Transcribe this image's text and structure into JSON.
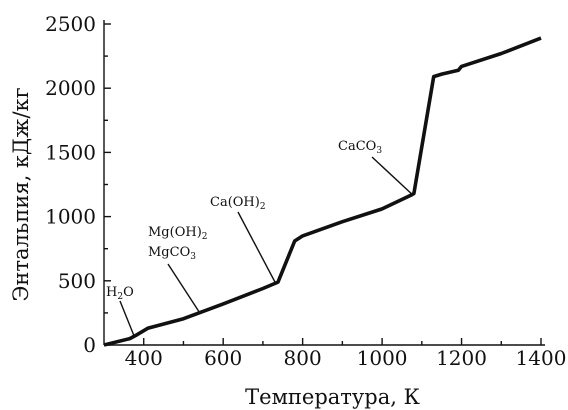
{
  "chart_data": {
    "type": "line",
    "title": "",
    "xlabel": "Температура, К",
    "ylabel": "Энтальпия, кДж/кг",
    "xlim": [
      300,
      1400
    ],
    "ylim": [
      0,
      2500
    ],
    "grid": false,
    "xticks": [
      400,
      600,
      800,
      1000,
      1200,
      1400
    ],
    "yticks": [
      0,
      500,
      1000,
      1500,
      2000,
      2500
    ],
    "series": [
      {
        "x": [
          300,
          365,
          380,
          410,
          500,
          600,
          700,
          738,
          780,
          800,
          900,
          1000,
          1075,
          1080,
          1130,
          1150,
          1192,
          1200,
          1300,
          1400
        ],
        "y": [
          0,
          50,
          75,
          130,
          205,
          320,
          440,
          490,
          810,
          850,
          960,
          1060,
          1170,
          1180,
          2090,
          2110,
          2140,
          2170,
          2270,
          2390
        ]
      }
    ],
    "annotations": [
      {
        "text": "H",
        "sub": "2",
        "tail": "O",
        "point_x": 377,
        "point_y": 60
      },
      {
        "text": "Mg(OH)",
        "sub": "2",
        "tail": "",
        "point_x": 540,
        "point_y": 255
      },
      {
        "text": "MgCO",
        "sub": "3",
        "tail": "",
        "point_x": 540,
        "point_y": 255
      },
      {
        "text": "Ca(OH)",
        "sub": "2",
        "tail": "",
        "point_x": 733,
        "point_y": 475
      },
      {
        "text": "CaCO",
        "sub": "3",
        "tail": "",
        "point_x": 1075,
        "point_y": 1175
      }
    ]
  }
}
